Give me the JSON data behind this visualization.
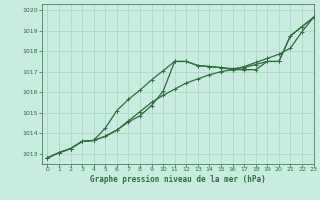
{
  "background_color": "#c8ece0",
  "grid_color": "#a8d4c0",
  "line_color": "#2d6e3e",
  "title": "Graphe pression niveau de la mer (hPa)",
  "xlim": [
    -0.5,
    23
  ],
  "ylim": [
    1012.5,
    1020.3
  ],
  "yticks": [
    1013,
    1014,
    1015,
    1016,
    1017,
    1018,
    1019,
    1020
  ],
  "xticks": [
    0,
    1,
    2,
    3,
    4,
    5,
    6,
    7,
    8,
    9,
    10,
    11,
    12,
    13,
    14,
    15,
    16,
    17,
    18,
    19,
    20,
    21,
    22,
    23
  ],
  "line1_x": [
    0,
    1,
    2,
    3,
    4,
    5,
    6,
    7,
    8,
    9,
    10,
    11,
    12,
    13,
    14,
    15,
    16,
    17,
    18,
    19,
    20,
    21,
    22,
    23
  ],
  "line1_y": [
    1012.8,
    1013.05,
    1013.25,
    1013.6,
    1013.65,
    1013.85,
    1014.15,
    1014.55,
    1014.85,
    1015.35,
    1016.05,
    1017.5,
    1017.5,
    1017.3,
    1017.25,
    1017.2,
    1017.15,
    1017.2,
    1017.35,
    1017.5,
    1017.5,
    1018.75,
    1019.2,
    1019.65
  ],
  "line2_x": [
    0,
    1,
    2,
    3,
    4,
    5,
    6,
    7,
    8,
    9,
    10,
    11,
    12,
    13,
    14,
    15,
    16,
    17,
    18,
    19,
    20,
    21,
    22,
    23
  ],
  "line2_y": [
    1012.8,
    1013.05,
    1013.25,
    1013.6,
    1013.65,
    1014.25,
    1015.1,
    1015.65,
    1016.1,
    1016.6,
    1017.05,
    1017.5,
    1017.5,
    1017.3,
    1017.25,
    1017.2,
    1017.1,
    1017.1,
    1017.1,
    1017.5,
    1017.5,
    1018.75,
    1019.2,
    1019.65
  ],
  "line3_x": [
    0,
    1,
    2,
    3,
    4,
    5,
    6,
    7,
    8,
    9,
    10,
    11,
    12,
    13,
    14,
    15,
    16,
    17,
    18,
    19,
    20,
    21,
    22,
    23
  ],
  "line3_y": [
    1012.8,
    1013.05,
    1013.25,
    1013.6,
    1013.65,
    1013.85,
    1014.15,
    1014.6,
    1015.05,
    1015.5,
    1015.85,
    1016.15,
    1016.45,
    1016.65,
    1016.85,
    1017.0,
    1017.1,
    1017.25,
    1017.45,
    1017.65,
    1017.85,
    1018.15,
    1018.95,
    1019.65
  ],
  "marker": "+",
  "markersize": 3.5,
  "linewidth": 0.9
}
